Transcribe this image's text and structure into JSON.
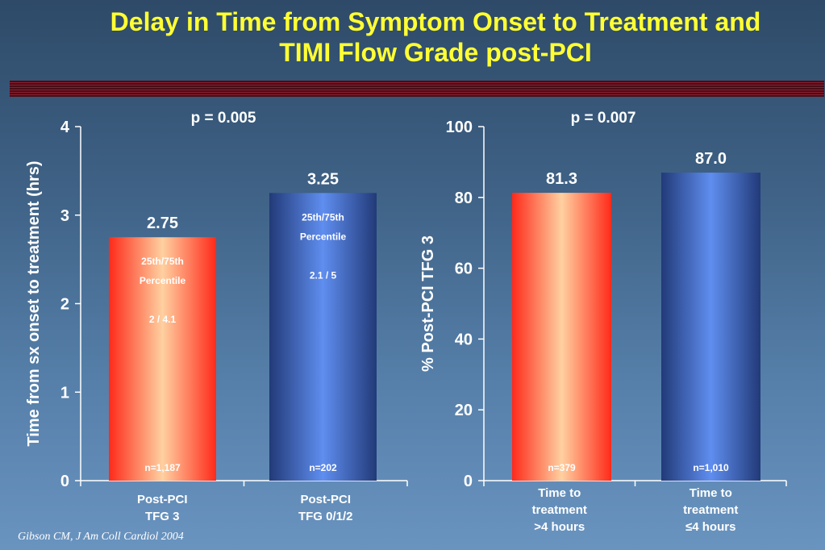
{
  "slide": {
    "title_line1": "Delay in Time from Symptom Onset to Treatment and",
    "title_line2": "TIMI Flow Grade post-PCI",
    "citation": "Gibson CM, J Am Coll Cardiol 2004"
  },
  "colors": {
    "title": "#ffff33",
    "red_bar_edge": "#ff2a1a",
    "red_bar_center": "#ffd0a0",
    "blue_bar_edge": "#223a78",
    "blue_bar_center": "#5f8ef0"
  },
  "chart_data": [
    {
      "type": "bar",
      "title": "p = 0.005",
      "ylabel": "Time from sx onset to treatment (hrs)",
      "ylim": [
        0,
        4
      ],
      "yticks": [
        "0",
        "1",
        "2",
        "3",
        "4"
      ],
      "categories": [
        [
          "Post-PCI",
          "TFG 3"
        ],
        [
          "Post-PCI",
          "TFG 0/1/2"
        ]
      ],
      "values": [
        2.75,
        3.25
      ],
      "value_labels": [
        "2.75",
        "3.25"
      ],
      "styles": [
        "red",
        "blue"
      ],
      "percentile_labels": [
        [
          "25th/75th",
          "Percentile",
          "",
          "2 / 4.1"
        ],
        [
          "25th/75th",
          "Percentile",
          "",
          "2.1 / 5"
        ]
      ],
      "n_labels": [
        "n=1,187",
        "n=202"
      ],
      "grid": false
    },
    {
      "type": "bar",
      "title": "p = 0.007",
      "ylabel": "% Post-PCI TFG 3",
      "ylim": [
        0,
        100
      ],
      "yticks": [
        "0",
        "20",
        "40",
        "60",
        "80",
        "100"
      ],
      "categories": [
        [
          "Time to",
          "treatment",
          ">4 hours"
        ],
        [
          "Time to",
          "treatment",
          "≤4 hours"
        ]
      ],
      "values": [
        81.3,
        87.0
      ],
      "value_labels": [
        "81.3",
        "87.0"
      ],
      "styles": [
        "red",
        "blue"
      ],
      "n_labels": [
        "n=379",
        "n=1,010"
      ],
      "grid": false
    }
  ]
}
